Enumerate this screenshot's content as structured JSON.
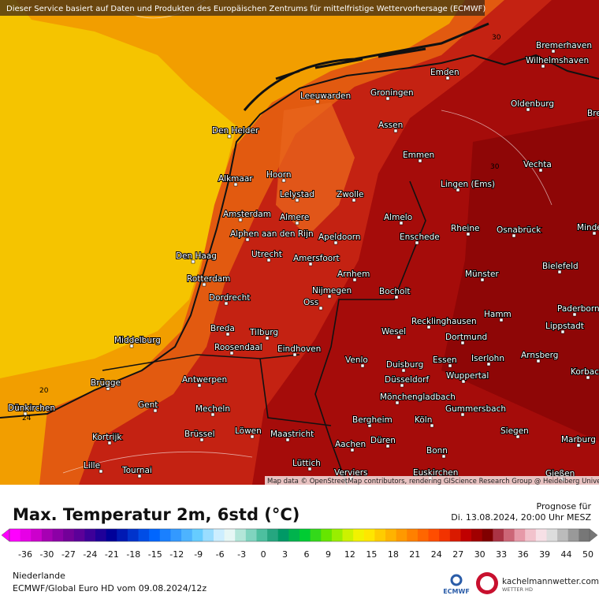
{
  "header": {
    "notice": "Dieser Service basiert auf Daten und Produkten des Europäischen Zentrums für mittelfristige Wettervorhersage (ECMWF)",
    "attribution": "Map data © OpenStreetMap contributors, rendering GIScience Research Group @ Heidelberg University"
  },
  "map": {
    "cities": [
      "Bremerhaven",
      "Wilhelmshaven",
      "Emden",
      "Oldenburg",
      "Bremen",
      "Leeuwarden",
      "Groningen",
      "Assen",
      "Den Helder",
      "Emmen",
      "Vechta",
      "Alkmaar",
      "Hoorn",
      "Lingen (Ems)",
      "Lelystad",
      "Zwolle",
      "Amsterdam",
      "Almere",
      "Almelo",
      "Rheine",
      "Osnabrück",
      "Minden",
      "Alphen aan den Rijn",
      "Apeldoorn",
      "Enschede",
      "Den Haag",
      "Utrecht",
      "Amersfoort",
      "Bielefeld",
      "Arnhem",
      "Münster",
      "Rotterdam",
      "Nijmegen",
      "Bocholt",
      "Dordrecht",
      "Oss",
      "Hamm",
      "Paderborn",
      "Breda",
      "Recklinghausen",
      "Lippstadt",
      "Tilburg",
      "Wesel",
      "Middelburg",
      "Roosendaal",
      "Eindhoven",
      "Dortmund",
      "Iserlohn",
      "Arnsberg",
      "Venlo",
      "Duisburg",
      "Essen",
      "Korbach",
      "Wuppertal",
      "Brügge",
      "Antwerpen",
      "Düsseldorf",
      "Mönchengladbach",
      "Dünkirchen",
      "Gent",
      "Mecheln",
      "Gummersbach",
      "Kortrijk",
      "Bergheim",
      "Köln",
      "Brüssel",
      "Löwen",
      "Maastricht",
      "Siegen",
      "Marburg",
      "Düren",
      "Aachen",
      "Bonn",
      "Lille",
      "Tournai",
      "Lüttich",
      "Verviers",
      "Euskirchen",
      "Gießen"
    ],
    "contour_labels": [
      "20",
      "24",
      "30",
      "30"
    ]
  },
  "legend": {
    "title": "Max. Temperatur 2m, 6std (°C)",
    "forecast_label": "Prognose für",
    "forecast_time": "Di. 13.08.2024, 20:00 Uhr MESZ",
    "ticks": [
      -36,
      -30,
      -27,
      -24,
      -21,
      -18,
      -15,
      -12,
      -9,
      -6,
      -3,
      0,
      3,
      6,
      9,
      12,
      15,
      18,
      21,
      24,
      27,
      30,
      33,
      36,
      39,
      44,
      50
    ],
    "colors": [
      "#ff00ff",
      "#e600e6",
      "#cc00cc",
      "#a600b3",
      "#8c00a6",
      "#730099",
      "#5c0099",
      "#3d0099",
      "#1f0099",
      "#000099",
      "#0019b3",
      "#0033cc",
      "#004de6",
      "#0066ff",
      "#1a80ff",
      "#3399ff",
      "#4db3ff",
      "#66ccff",
      "#99ddff",
      "#cceeff",
      "#e6f7f5",
      "#b3e6d9",
      "#80d4bf",
      "#4dbf9f",
      "#26a680",
      "#009966",
      "#00b34d",
      "#00cc33",
      "#33d91a",
      "#66e600",
      "#99ee00",
      "#ccf200",
      "#f2f200",
      "#ffe600",
      "#ffcc00",
      "#ffb300",
      "#ff9900",
      "#ff8000",
      "#ff6600",
      "#ff4d00",
      "#f23300",
      "#d91a00",
      "#c00000",
      "#a00000",
      "#800000",
      "#aa3344",
      "#cc6677",
      "#e699a8",
      "#f2c2cc",
      "#f7e0e6",
      "#dddddd",
      "#bbbbbb",
      "#999999",
      "#777777"
    ]
  },
  "footer": {
    "region": "Niederlande",
    "model": "ECMWF/Global Euro HD vom  09.08.2024/12z",
    "ecmwf_logo": "ECMWF",
    "brand": "kachelmannwetter.com",
    "brand_sub": "WETTER HD"
  }
}
